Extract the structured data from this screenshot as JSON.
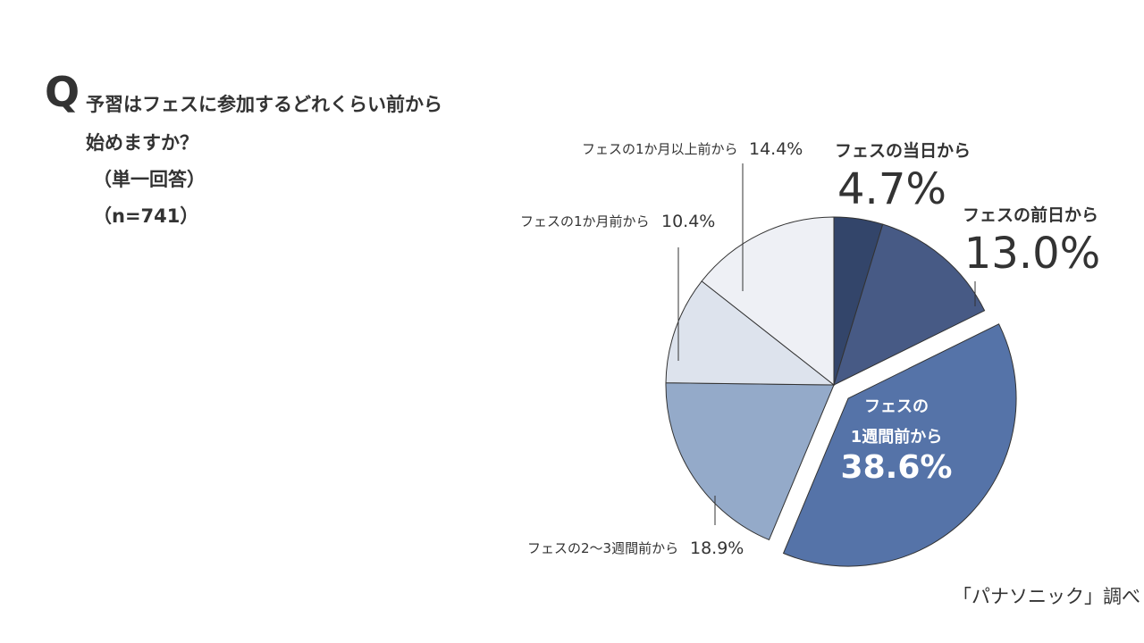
{
  "question": {
    "mark": "Q",
    "lines": [
      "予習はフェスに参加するどれくらい前から",
      "始めますか？",
      "（単一回答）",
      "（n=741）"
    ]
  },
  "source": "「パナソニック」調べ",
  "colors": {
    "dark": "#33456a",
    "medium_dark": "#475a85",
    "accent": "#5573a8",
    "medium": "#94aac9",
    "light": "#dde3ed",
    "lightest": "#eef0f5",
    "text": "#333333",
    "inside_text": "#ffffff"
  },
  "chart_data": {
    "type": "pie",
    "unit": "%",
    "start": "12 o'clock",
    "direction": "clockwise",
    "slices": [
      {
        "label": "フェスの当日から",
        "value": 4.7,
        "value_text": "4.7%",
        "color": "#33456a"
      },
      {
        "label": "フェスの前日から",
        "value": 13.0,
        "value_text": "13.0%",
        "color": "#475a85"
      },
      {
        "label": "フェスの1週間前から",
        "label_lines": [
          "フェスの",
          "1週間前から"
        ],
        "value": 38.6,
        "value_text": "38.6%",
        "color": "#5573a8",
        "exploded": true
      },
      {
        "label": "フェスの2〜3週間前から",
        "value": 18.9,
        "value_text": "18.9%",
        "color": "#94aac9"
      },
      {
        "label": "フェスの1か月前から",
        "value": 10.4,
        "value_text": "10.4%",
        "color": "#dde3ed"
      },
      {
        "label": "フェスの1か月以上前から",
        "value": 14.4,
        "value_text": "14.4%",
        "color": "#eef0f5"
      }
    ]
  }
}
